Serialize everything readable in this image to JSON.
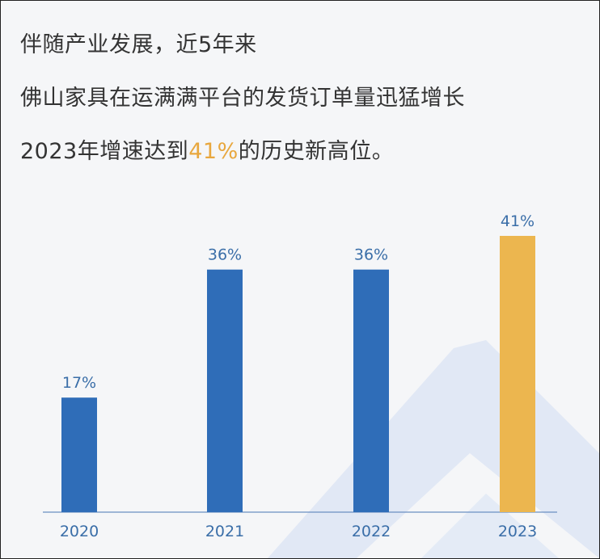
{
  "headline": {
    "line1": "伴随产业发展，近5年来",
    "line2": "佛山家具在运满满平台的发货订单量迅猛增长",
    "line3_prefix": "2023年增速达到",
    "line3_highlight": "41%",
    "line3_suffix": "的历史新高位。"
  },
  "colors": {
    "bar": "#2f6db8",
    "highlight_bar": "#ecb64f",
    "label": "#3a6ea8",
    "highlight_text": "#e8a73e"
  },
  "chart_data": {
    "type": "bar",
    "categories": [
      "2020",
      "2021",
      "2022",
      "2023"
    ],
    "values": [
      17,
      36,
      36,
      41
    ],
    "value_labels": [
      "17%",
      "36%",
      "36%",
      "41%"
    ],
    "highlight_index": 3,
    "title": "",
    "xlabel": "",
    "ylabel": "",
    "ylim": [
      0,
      41
    ],
    "grid": false,
    "legend": "none"
  }
}
